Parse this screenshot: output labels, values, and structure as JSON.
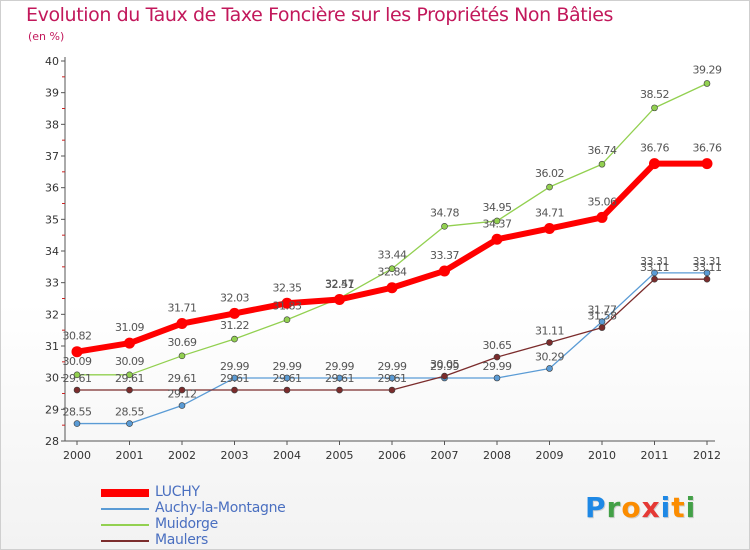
{
  "header": {
    "title": "Evolution du Taux de Taxe Foncière sur les Propriétés Non Bâties",
    "subtitle": "(en %)"
  },
  "logo": {
    "letters": [
      "P",
      "r",
      "o",
      "x",
      "i",
      "t",
      "i"
    ],
    "colors": [
      "#1e88e5",
      "#43a047",
      "#fb8c00",
      "#e53935",
      "#1e88e5",
      "#fb8c00",
      "#43a047"
    ]
  },
  "chart_data": {
    "type": "line",
    "title": "Evolution du Taux de Taxe Foncière sur les Propriétés Non Bâties",
    "ylabel": "(en %)",
    "x": [
      "2000",
      "2001",
      "2002",
      "2003",
      "2004",
      "2005",
      "2006",
      "2007",
      "2008",
      "2009",
      "2010",
      "2011",
      "2012"
    ],
    "ylim": [
      28,
      40
    ],
    "yticks": [
      28,
      29,
      30,
      31,
      32,
      33,
      34,
      35,
      36,
      37,
      38,
      39,
      40
    ],
    "grid": false,
    "legend_position": "bottom-left",
    "series": [
      {
        "name": "LUCHY",
        "color": "#ff0000",
        "values": [
          30.82,
          31.09,
          31.71,
          32.03,
          32.35,
          32.47,
          32.84,
          33.37,
          34.37,
          34.71,
          35.06,
          36.76,
          36.76
        ],
        "labels": [
          "30.82",
          "31.09",
          "31.71",
          "32.03",
          "32.35",
          "32.47",
          "32.84",
          "33.37",
          "34.37",
          "34.71",
          "35.06",
          "36.76",
          "36.76"
        ]
      },
      {
        "name": "Auchy-la-Montagne",
        "color": "#5a9bd5",
        "values": [
          28.55,
          28.55,
          29.12,
          29.99,
          29.99,
          29.99,
          29.99,
          29.99,
          29.99,
          30.29,
          31.77,
          33.31,
          33.31
        ],
        "labels": [
          "28.55",
          "28.55",
          "29.12",
          "29.99",
          "29.99",
          "29.99",
          "29.99",
          "29.99",
          "29.99",
          "30.29",
          "31.77",
          "33.31",
          "33.31"
        ]
      },
      {
        "name": "Muidorge",
        "color": "#92d050",
        "values": [
          30.09,
          30.09,
          30.69,
          31.22,
          31.83,
          32.51,
          33.44,
          34.78,
          34.95,
          36.02,
          36.74,
          38.52,
          39.29
        ],
        "labels": [
          "30.09",
          "30.09",
          "30.69",
          "31.22",
          "31.83",
          "32.51",
          "33.44",
          "34.78",
          "34.95",
          "36.02",
          "36.74",
          "38.52",
          "39.29"
        ]
      },
      {
        "name": "Maulers",
        "color": "#7b2c2c",
        "values": [
          29.61,
          29.61,
          29.61,
          29.61,
          29.61,
          29.61,
          29.61,
          30.05,
          30.65,
          31.11,
          31.58,
          33.11,
          33.11
        ],
        "labels": [
          "29.61",
          "29.61",
          "29.61",
          "29.61",
          "29.61",
          "29.61",
          "29.61",
          "30.05",
          "30.65",
          "31.11",
          "31.58",
          "33.11",
          "33.11"
        ]
      }
    ]
  }
}
